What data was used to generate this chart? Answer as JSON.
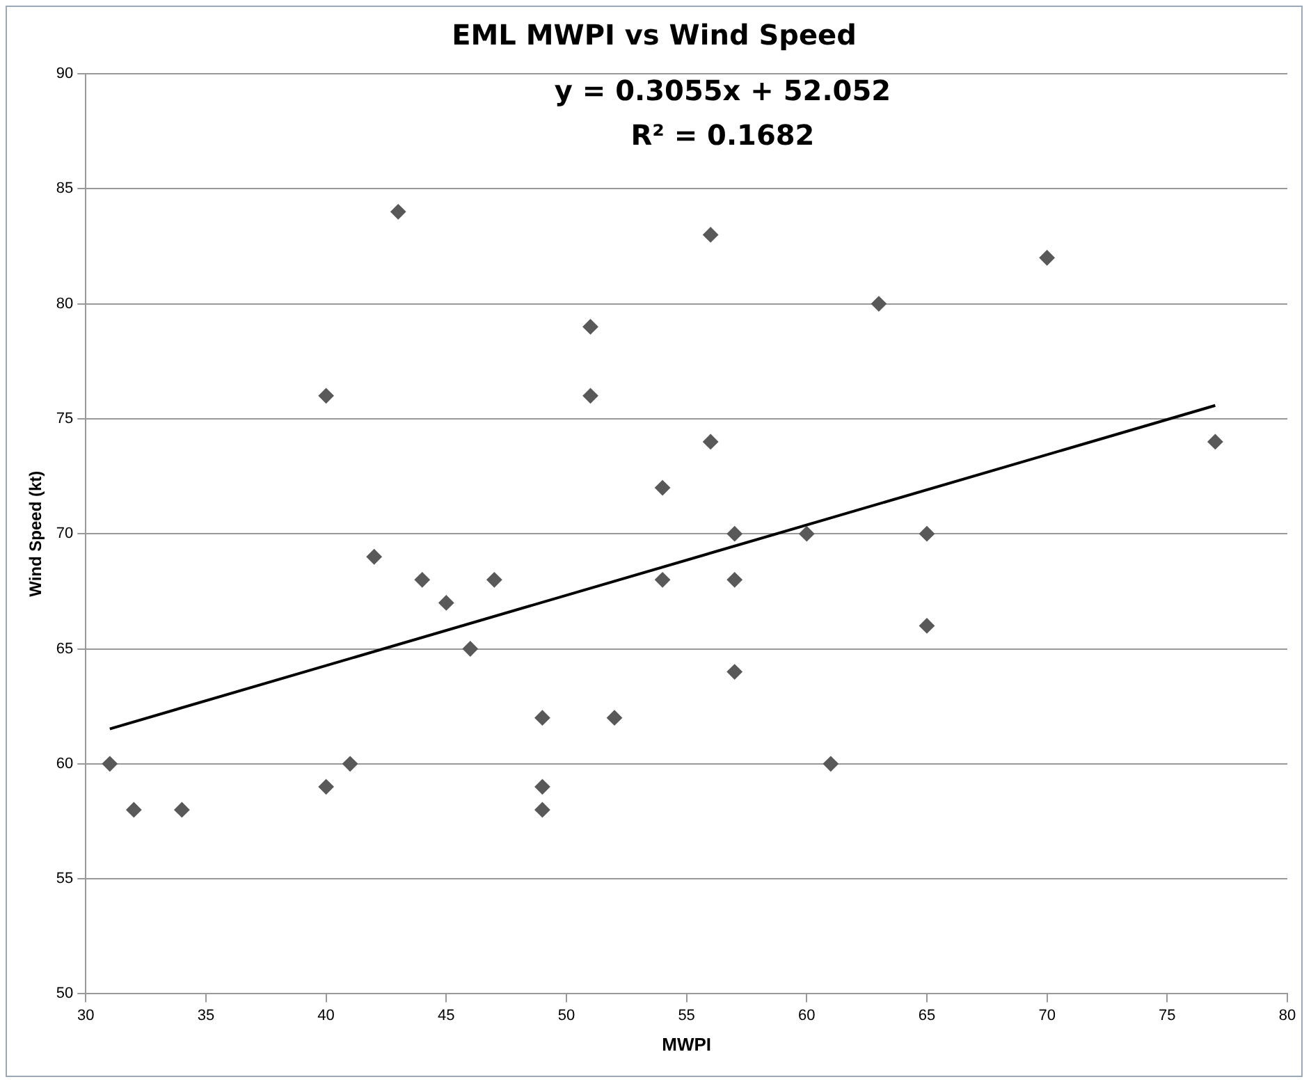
{
  "chart_data": {
    "type": "scatter",
    "title": "EML MWPI vs Wind Speed",
    "xlabel": "MWPI",
    "ylabel": "Wind Speed (kt)",
    "annotations": [
      "y = 0.3055x + 52.052",
      "R² = 0.1682"
    ],
    "xlim": [
      30,
      80
    ],
    "xticks": [
      30,
      35,
      40,
      45,
      50,
      55,
      60,
      65,
      70,
      75,
      80
    ],
    "ylim": [
      50,
      90
    ],
    "yticks": [
      50,
      55,
      60,
      65,
      70,
      75,
      80,
      85,
      90
    ],
    "grid": "y",
    "legend": false,
    "marker": "diamond",
    "series": [
      {
        "color": "#595959",
        "x": [
          31,
          32,
          34,
          40,
          40,
          41,
          42,
          43,
          44,
          45,
          46,
          47,
          49,
          49,
          49,
          51,
          51,
          52,
          54,
          54,
          56,
          56,
          57,
          57,
          57,
          60,
          61,
          63,
          65,
          65,
          70,
          77
        ],
        "values": [
          60,
          58,
          58,
          76,
          59,
          60,
          69,
          84,
          68,
          67,
          65,
          68,
          62,
          59,
          58,
          79,
          76,
          62,
          72,
          68,
          83,
          74,
          70,
          68,
          64,
          70,
          60,
          80,
          70,
          66,
          82,
          74
        ]
      },
      {
        "type": "line",
        "color": "#000000",
        "marker": "none",
        "x": [
          31,
          77
        ],
        "values": [
          61.52,
          75.58
        ]
      }
    ]
  }
}
